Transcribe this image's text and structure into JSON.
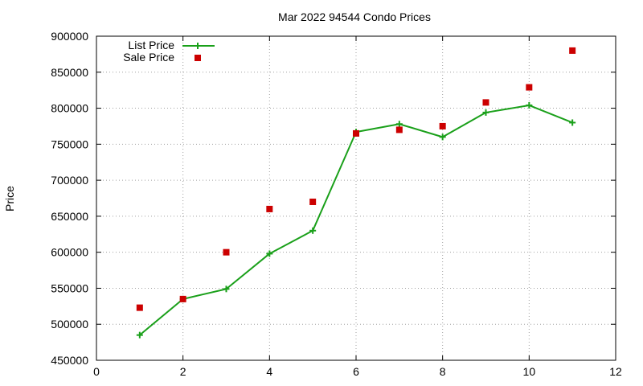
{
  "chart_data": {
    "type": "line",
    "title": "Mar 2022 94544 Condo Prices",
    "xlabel": "",
    "ylabel": "Price",
    "xlim": [
      0,
      12
    ],
    "ylim": [
      450000,
      900000
    ],
    "x_ticks": [
      0,
      2,
      4,
      6,
      8,
      10,
      12
    ],
    "y_ticks": [
      450000,
      500000,
      550000,
      600000,
      650000,
      700000,
      750000,
      800000,
      850000,
      900000
    ],
    "grid": true,
    "legend_position": "top-left",
    "series": [
      {
        "name": "List Price",
        "style": "line+cross",
        "color": "#1aa01a",
        "x": [
          1,
          2,
          3,
          4,
          5,
          6,
          7,
          8,
          9,
          10,
          11
        ],
        "values": [
          485000,
          535000,
          549000,
          598000,
          630000,
          767000,
          778000,
          760000,
          794000,
          804000,
          780000
        ]
      },
      {
        "name": "Sale Price",
        "style": "square",
        "color": "#cc0000",
        "x": [
          1,
          2,
          3,
          4,
          5,
          6,
          7,
          8,
          9,
          10,
          11
        ],
        "values": [
          523000,
          535000,
          600000,
          660000,
          670000,
          765000,
          770000,
          775000,
          808000,
          829000,
          880000
        ]
      }
    ]
  }
}
